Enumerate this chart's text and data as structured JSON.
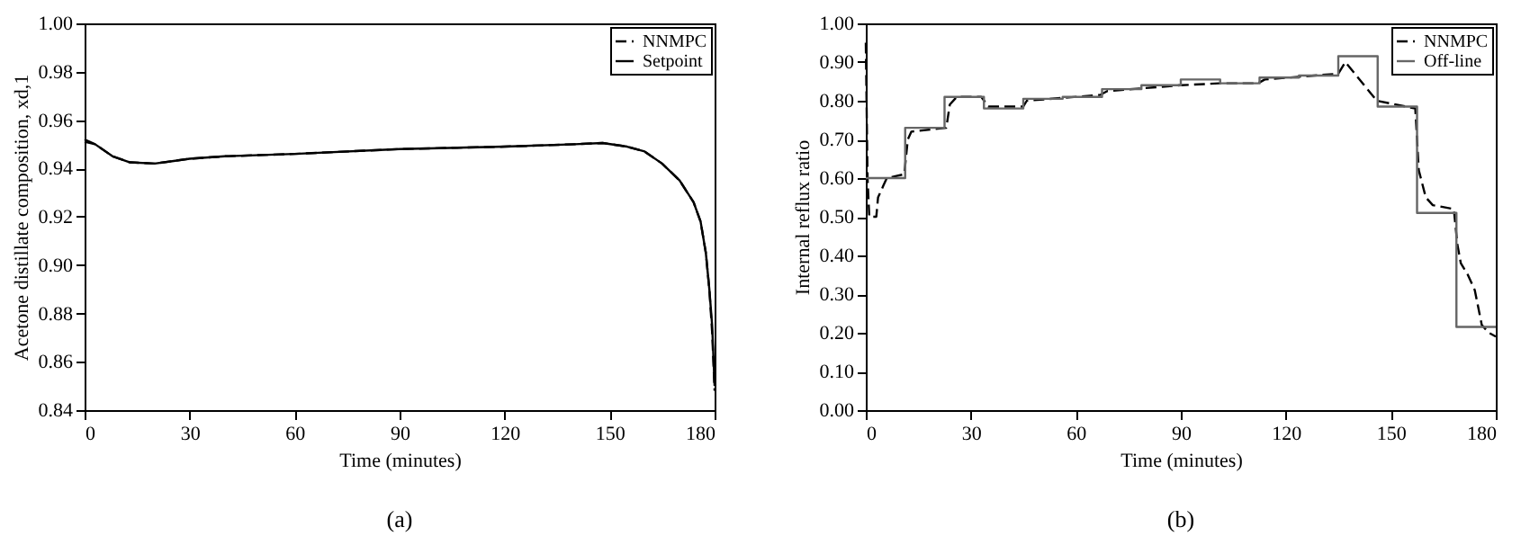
{
  "chart_data": [
    {
      "type": "line",
      "xlabel": "Time (minutes)",
      "ylabel": "Acetone distillate composition, xd,1",
      "annotations": [
        "(a)"
      ],
      "xlim": [
        0,
        180
      ],
      "xticks": [
        0,
        30,
        60,
        90,
        120,
        150,
        180
      ],
      "ylim": [
        0.84,
        1.0
      ],
      "yticks": [
        {
          "value": 0.84,
          "label": "0.84"
        },
        {
          "value": 0.86,
          "label": "0.86"
        },
        {
          "value": 0.88,
          "label": "0.88"
        },
        {
          "value": 0.9,
          "label": "0.90"
        },
        {
          "value": 0.92,
          "label": "0.92"
        },
        {
          "value": 0.94,
          "label": "0.94"
        },
        {
          "value": 0.96,
          "label": "0.96"
        },
        {
          "value": 0.98,
          "label": "0.98"
        },
        {
          "value": 1.0,
          "label": "1.00"
        }
      ],
      "grid": false,
      "legend": "top right",
      "series": [
        {
          "name": "NNMPC",
          "color": "#000000",
          "line_style": "dashed",
          "x": [
            0,
            3,
            8,
            13,
            20,
            25,
            30,
            40,
            60,
            90,
            120,
            140,
            148,
            155,
            160,
            165,
            170,
            174,
            176,
            177.5,
            178.5,
            179.3,
            180
          ],
          "values": [
            0.951,
            0.95,
            0.945,
            0.9425,
            0.942,
            0.943,
            0.944,
            0.945,
            0.946,
            0.948,
            0.949,
            0.95,
            0.9505,
            0.949,
            0.947,
            0.942,
            0.935,
            0.926,
            0.918,
            0.905,
            0.89,
            0.872,
            0.848
          ]
        },
        {
          "name": "Setpoint",
          "color": "#000000",
          "line_style": "solid",
          "x": [
            0,
            3,
            8,
            13,
            20,
            25,
            30,
            40,
            60,
            90,
            120,
            140,
            148,
            155,
            160,
            165,
            170,
            174,
            176,
            177.5,
            178.5,
            179.3,
            180
          ],
          "values": [
            0.952,
            0.95,
            0.945,
            0.9425,
            0.942,
            0.943,
            0.944,
            0.945,
            0.946,
            0.948,
            0.949,
            0.95,
            0.9505,
            0.949,
            0.947,
            0.942,
            0.935,
            0.926,
            0.918,
            0.905,
            0.89,
            0.875,
            0.85
          ]
        }
      ]
    },
    {
      "type": "line",
      "xlabel": "Time (minutes)",
      "ylabel": "Internal reflux ratio",
      "annotations": [
        "(b)"
      ],
      "xlim": [
        0,
        180
      ],
      "xticks": [
        0,
        30,
        60,
        90,
        120,
        150,
        180
      ],
      "ylim": [
        0,
        1.0
      ],
      "yticks": [
        {
          "value": 0,
          "label": "0.00"
        },
        {
          "value": 0.1,
          "label": "0.10"
        },
        {
          "value": 0.2,
          "label": "0.20"
        },
        {
          "value": 0.3,
          "label": "0.30"
        },
        {
          "value": 0.4,
          "label": "0.40"
        },
        {
          "value": 0.5,
          "label": "0.50"
        },
        {
          "value": 0.6,
          "label": "0.60"
        },
        {
          "value": 0.7,
          "label": "0.70"
        },
        {
          "value": 0.8,
          "label": "0.80"
        },
        {
          "value": 0.9,
          "label": "0.90"
        },
        {
          "value": 1.0,
          "label": "1.00"
        }
      ],
      "grid": false,
      "legend": "top right",
      "series": [
        {
          "name": "NNMPC",
          "color": "#000000",
          "line_style": "dashed",
          "type": "line",
          "x": [
            0,
            0.5,
            1,
            3,
            3.5,
            5,
            6,
            11,
            12,
            13,
            23,
            24,
            26,
            33,
            35,
            45,
            46,
            67,
            69,
            90,
            101,
            112,
            114,
            135,
            137,
            146,
            157,
            158,
            160,
            162,
            168,
            169,
            170,
            172,
            174,
            176,
            178,
            180
          ],
          "values": [
            0.95,
            0.6,
            0.5,
            0.5,
            0.55,
            0.58,
            0.6,
            0.61,
            0.7,
            0.72,
            0.73,
            0.79,
            0.81,
            0.81,
            0.785,
            0.785,
            0.8,
            0.815,
            0.825,
            0.84,
            0.845,
            0.845,
            0.855,
            0.87,
            0.9,
            0.8,
            0.78,
            0.62,
            0.55,
            0.53,
            0.52,
            0.43,
            0.38,
            0.35,
            0.31,
            0.22,
            0.2,
            0.19
          ]
        },
        {
          "name": "Off-line",
          "color": "#666666",
          "line_style": "solid",
          "type": "step",
          "x": [
            0,
            11.25,
            22.5,
            33.75,
            45,
            56.25,
            67.5,
            78.75,
            90,
            101.25,
            112.5,
            123.75,
            135,
            146.25,
            157.5,
            168.75,
            180
          ],
          "values": [
            0.6,
            0.73,
            0.81,
            0.78,
            0.805,
            0.81,
            0.83,
            0.84,
            0.855,
            0.845,
            0.86,
            0.865,
            0.915,
            0.785,
            0.51,
            0.215,
            0.215
          ]
        }
      ]
    }
  ]
}
